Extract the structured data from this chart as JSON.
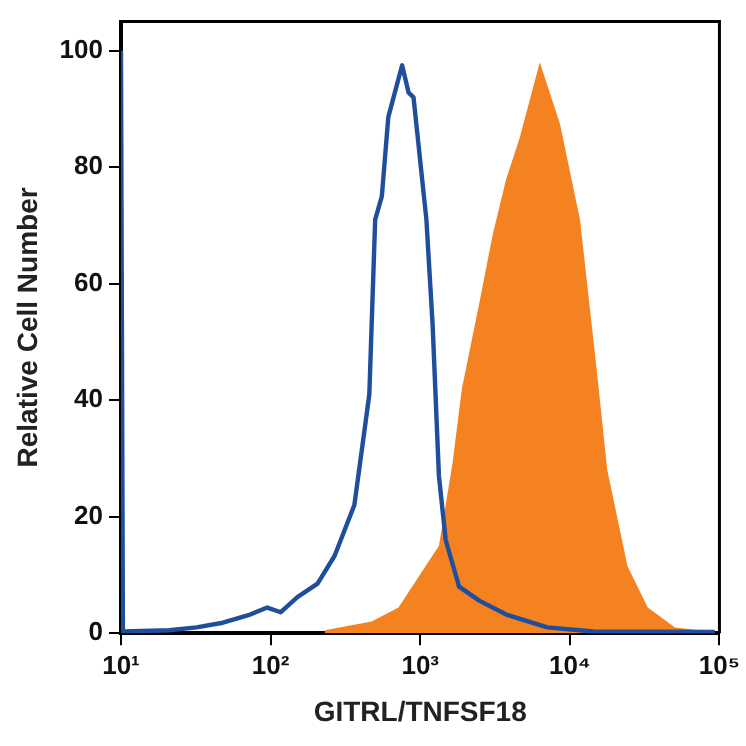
{
  "chart_data": {
    "type": "line",
    "xlabel": "GITRL/TNFSF18",
    "ylabel": "Relative Cell Number",
    "log": "x",
    "grid": false,
    "legend": false,
    "marker": "none",
    "line_style": "solid",
    "xlim": [
      10,
      100000
    ],
    "xticks": [
      {
        "value": 10,
        "label": "10¹"
      },
      {
        "value": 100,
        "label": "10²"
      },
      {
        "value": 1000,
        "label": "10³"
      },
      {
        "value": 10000,
        "label": "10⁴"
      },
      {
        "value": 100000,
        "label": "10⁵"
      }
    ],
    "ylim": [
      0,
      105
    ],
    "yticks": [
      0,
      20,
      40,
      60,
      80,
      100
    ],
    "series": [
      {
        "type": "area",
        "color": "#f58220",
        "x": [
          230,
          473,
          716,
          1085,
          1334,
          1640,
          1900,
          2480,
          3050,
          3760,
          4620,
          6300,
          8600,
          11700,
          15200,
          17800,
          24300,
          33200,
          50400,
          93000
        ],
        "values": [
          0.5,
          2,
          4.4,
          11.5,
          15,
          29,
          42,
          56.6,
          68.4,
          78,
          85,
          98,
          87.4,
          71,
          44.7,
          28,
          11.5,
          4.4,
          1,
          0.2
        ]
      },
      {
        "type": "line",
        "color": "#1f4e9c",
        "x": [
          10,
          10.3,
          21,
          32,
          48,
          73,
          95,
          117,
          151,
          206,
          268,
          363,
          425,
          457,
          500,
          554,
          612,
          757,
          837,
          902,
          1100,
          1210,
          1334,
          1480,
          1820,
          2480,
          3760,
          7070,
          14400,
          93000
        ],
        "values": [
          100,
          0.3,
          0.5,
          1,
          1.8,
          3.2,
          4.4,
          3.6,
          6.2,
          8.5,
          13.3,
          22,
          35,
          41,
          71,
          75,
          88.6,
          97.5,
          92.8,
          92,
          71,
          53,
          27,
          16,
          8,
          5.6,
          3.2,
          1,
          0.3,
          0.2
        ]
      }
    ]
  }
}
